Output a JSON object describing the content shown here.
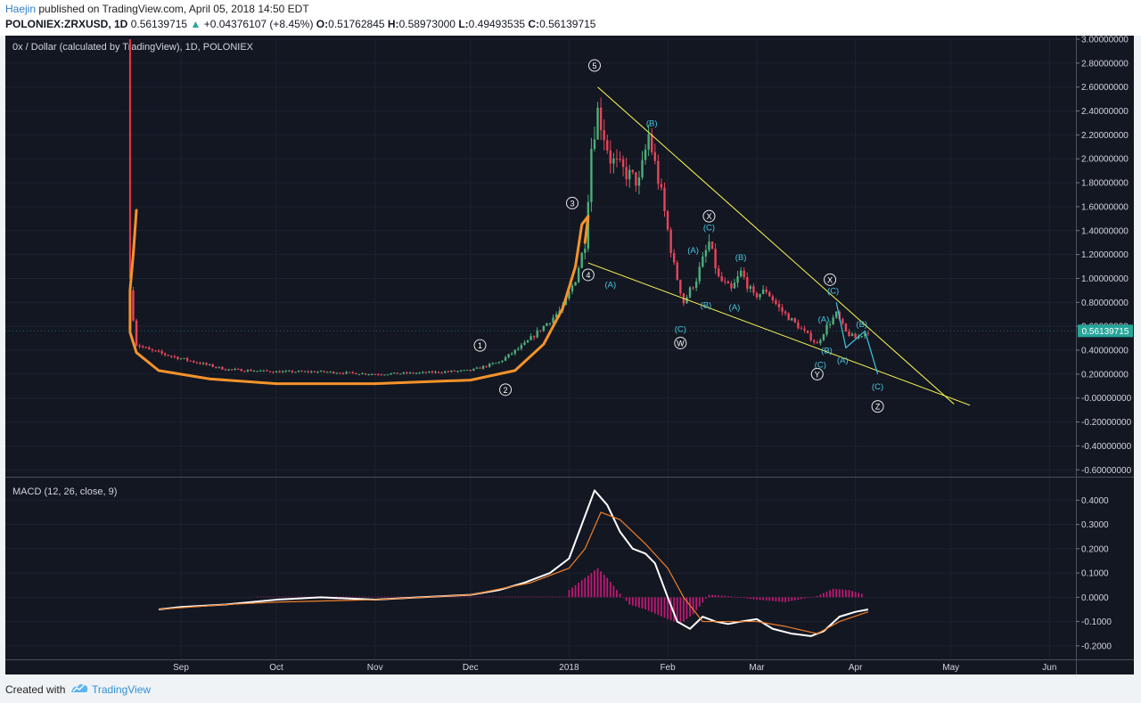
{
  "header": {
    "author": "Haejin",
    "published_text": "published on TradingView.com, April 05, 2018 14:50 EDT",
    "symbol_line": "POLONIEX:ZRXUSD, 1D",
    "last": "0.56139715",
    "change_arrow": "▲",
    "change": "+0.04376107 (+8.45%)",
    "o_label": "O:",
    "o": "0.51762845",
    "h_label": "H:",
    "h": "0.58973000",
    "l_label": "L:",
    "l": "0.49493535",
    "c_label": "C:",
    "c": "0.56139715"
  },
  "chart_data": [
    {
      "type": "candlestick",
      "title": "0x / Dollar (calculated by TradingView), 1D, POLONIEX",
      "y_ticks": [
        "3.00000000",
        "2.80000000",
        "2.60000000",
        "2.40000000",
        "2.20000000",
        "2.00000000",
        "1.80000000",
        "1.60000000",
        "1.40000000",
        "1.20000000",
        "1.00000000",
        "0.80000000",
        "0.60000000",
        "0.40000000",
        "0.20000000",
        "-0.00000000",
        "-0.20000000",
        "-0.40000000",
        "-0.60000000"
      ],
      "ylim": [
        -0.65,
        3.0
      ],
      "x_labels": [
        "Sep",
        "Oct",
        "Nov",
        "Dec",
        "2018",
        "Feb",
        "Mar",
        "Apr",
        "May",
        "Jun"
      ],
      "x_dates": [
        "2017-09-01",
        "2017-10-01",
        "2017-11-01",
        "2017-12-01",
        "2018-01-01",
        "2018-02-01",
        "2018-03-01",
        "2018-04-01",
        "2018-05-01",
        "2018-06-01"
      ],
      "last_price_label": "0.56139715",
      "last_price": 0.5614,
      "close_series": {
        "dates": [
          "2017-08-16",
          "2017-08-18",
          "2017-08-22",
          "2017-09-01",
          "2017-09-15",
          "2017-10-01",
          "2017-10-15",
          "2017-11-01",
          "2017-11-15",
          "2017-12-01",
          "2017-12-10",
          "2017-12-18",
          "2017-12-24",
          "2017-12-30",
          "2018-01-03",
          "2018-01-06",
          "2018-01-08",
          "2018-01-10",
          "2018-01-14",
          "2018-01-18",
          "2018-01-23",
          "2018-01-26",
          "2018-01-30",
          "2018-02-03",
          "2018-02-06",
          "2018-02-10",
          "2018-02-14",
          "2018-02-17",
          "2018-02-21",
          "2018-02-24",
          "2018-02-28",
          "2018-03-04",
          "2018-03-08",
          "2018-03-12",
          "2018-03-16",
          "2018-03-20",
          "2018-03-23",
          "2018-03-26",
          "2018-03-29",
          "2018-04-01",
          "2018-04-05"
        ],
        "values": [
          0.9,
          0.45,
          0.4,
          0.33,
          0.24,
          0.22,
          0.22,
          0.2,
          0.21,
          0.23,
          0.3,
          0.45,
          0.6,
          0.75,
          1.0,
          1.3,
          2.1,
          2.4,
          2.0,
          1.9,
          1.8,
          2.2,
          1.7,
          1.1,
          0.8,
          1.0,
          1.3,
          1.0,
          0.9,
          1.05,
          0.85,
          0.9,
          0.75,
          0.65,
          0.55,
          0.45,
          0.6,
          0.7,
          0.55,
          0.5,
          0.56
        ]
      },
      "annotations": [
        {
          "text": "1",
          "style": "circled",
          "date": "2017-12-04",
          "y": 0.44
        },
        {
          "text": "2",
          "style": "circled",
          "date": "2017-12-12",
          "y": 0.07
        },
        {
          "text": "3",
          "style": "circled",
          "date": "2018-01-02",
          "y": 1.63
        },
        {
          "text": "4",
          "style": "circled",
          "date": "2018-01-07",
          "y": 1.03
        },
        {
          "text": "5",
          "style": "circled",
          "date": "2018-01-09",
          "y": 2.78
        },
        {
          "text": "(A)",
          "style": "wave",
          "date": "2018-01-14",
          "y": 0.95
        },
        {
          "text": "(B)",
          "style": "wave",
          "date": "2018-01-27",
          "y": 2.3
        },
        {
          "text": "(C)",
          "style": "wave",
          "date": "2018-02-05",
          "y": 0.58
        },
        {
          "text": "W",
          "style": "circled",
          "date": "2018-02-05",
          "y": 0.46
        },
        {
          "text": "(A)",
          "style": "wave",
          "date": "2018-02-09",
          "y": 1.24
        },
        {
          "text": "(B)",
          "style": "wave",
          "date": "2018-02-13",
          "y": 0.78
        },
        {
          "text": "X",
          "style": "circled",
          "date": "2018-02-14",
          "y": 1.52
        },
        {
          "text": "(C)",
          "style": "wave",
          "date": "2018-02-14",
          "y": 1.43
        },
        {
          "text": "(B)",
          "style": "wave",
          "date": "2018-02-24",
          "y": 1.18
        },
        {
          "text": "(A)",
          "style": "wave",
          "date": "2018-02-22",
          "y": 0.76
        },
        {
          "text": "(C)",
          "style": "wave",
          "date": "2018-03-21",
          "y": 0.28
        },
        {
          "text": "Y",
          "style": "circled",
          "date": "2018-03-20",
          "y": 0.2
        },
        {
          "text": "(A)",
          "style": "wave",
          "date": "2018-03-22",
          "y": 0.66
        },
        {
          "text": "(B)",
          "style": "wave",
          "date": "2018-03-23",
          "y": 0.4
        },
        {
          "text": "X",
          "style": "circled",
          "date": "2018-03-24",
          "y": 0.99
        },
        {
          "text": "(C)",
          "style": "wave",
          "date": "2018-03-25",
          "y": 0.9
        },
        {
          "text": "(A)",
          "style": "wave",
          "date": "2018-03-28",
          "y": 0.32
        },
        {
          "text": "(B)",
          "style": "wave",
          "date": "2018-04-03",
          "y": 0.62
        },
        {
          "text": "(C)",
          "style": "wave",
          "date": "2018-04-08",
          "y": 0.1
        },
        {
          "text": "Z",
          "style": "circled",
          "date": "2018-04-08",
          "y": -0.07
        }
      ],
      "trendlines": [
        {
          "name": "upper",
          "color": "#ffff54",
          "from": {
            "date": "2018-01-10",
            "y": 2.6
          },
          "to": {
            "date": "2018-05-02",
            "y": -0.05
          }
        },
        {
          "name": "lower",
          "color": "#ffff54",
          "from": {
            "date": "2018-01-07",
            "y": 1.13
          },
          "to": {
            "date": "2018-05-07",
            "y": -0.06
          }
        }
      ],
      "projection": {
        "color": "#3ec8e0",
        "points": [
          {
            "date": "2018-03-26",
            "y": 0.8
          },
          {
            "date": "2018-03-29",
            "y": 0.42
          },
          {
            "date": "2018-04-04",
            "y": 0.56
          },
          {
            "date": "2018-04-08",
            "y": 0.2
          }
        ]
      },
      "hand_drawn_curve": {
        "color": "#f5932a",
        "points": [
          {
            "date": "2017-08-18",
            "y": 1.57
          },
          {
            "date": "2017-08-17",
            "y": 1.2
          },
          {
            "date": "2017-08-16",
            "y": 0.9
          },
          {
            "date": "2017-08-16",
            "y": 0.55
          },
          {
            "date": "2017-08-18",
            "y": 0.38
          },
          {
            "date": "2017-08-25",
            "y": 0.23
          },
          {
            "date": "2017-09-10",
            "y": 0.16
          },
          {
            "date": "2017-10-01",
            "y": 0.12
          },
          {
            "date": "2017-11-01",
            "y": 0.12
          },
          {
            "date": "2017-12-01",
            "y": 0.15
          },
          {
            "date": "2017-12-15",
            "y": 0.23
          },
          {
            "date": "2017-12-24",
            "y": 0.45
          },
          {
            "date": "2017-12-30",
            "y": 0.75
          },
          {
            "date": "2018-01-03",
            "y": 1.1
          },
          {
            "date": "2018-01-05",
            "y": 1.45
          },
          {
            "date": "2018-01-07",
            "y": 1.52
          },
          {
            "date": "2018-01-06",
            "y": 1.3
          }
        ]
      },
      "red_spike": {
        "color": "#f23645",
        "date": "2017-08-16",
        "from": 3.0,
        "to": 1.0
      }
    },
    {
      "type": "line",
      "title": "MACD (12, 26, close, 9)",
      "y_ticks": [
        "0.4000",
        "0.3000",
        "0.2000",
        "0.1000",
        "0.0000",
        "-0.1000",
        "-0.2000"
      ],
      "ylim": [
        -0.23,
        0.46
      ],
      "series": [
        {
          "color": "#ffffff",
          "dates": [
            "2017-08-25",
            "2017-09-01",
            "2017-09-15",
            "2017-10-01",
            "2017-10-15",
            "2017-11-01",
            "2017-11-15",
            "2017-12-01",
            "2017-12-10",
            "2017-12-18",
            "2017-12-26",
            "2018-01-01",
            "2018-01-05",
            "2018-01-09",
            "2018-01-13",
            "2018-01-17",
            "2018-01-21",
            "2018-01-25",
            "2018-01-28",
            "2018-02-01",
            "2018-02-04",
            "2018-02-08",
            "2018-02-12",
            "2018-02-16",
            "2018-02-20",
            "2018-02-24",
            "2018-03-01",
            "2018-03-06",
            "2018-03-12",
            "2018-03-18",
            "2018-03-22",
            "2018-03-27",
            "2018-04-01",
            "2018-04-05"
          ],
          "values": [
            -0.05,
            -0.04,
            -0.03,
            -0.01,
            0.0,
            -0.01,
            0.0,
            0.01,
            0.03,
            0.06,
            0.1,
            0.16,
            0.3,
            0.44,
            0.38,
            0.27,
            0.2,
            0.18,
            0.14,
            0.0,
            -0.1,
            -0.13,
            -0.08,
            -0.1,
            -0.11,
            -0.1,
            -0.09,
            -0.13,
            -0.15,
            -0.16,
            -0.14,
            -0.08,
            -0.06,
            -0.05
          ]
        },
        {
          "color": "#ef7f2a",
          "dates": [
            "2017-08-25",
            "2017-09-15",
            "2017-10-01",
            "2017-11-01",
            "2017-12-01",
            "2017-12-20",
            "2018-01-01",
            "2018-01-06",
            "2018-01-11",
            "2018-01-17",
            "2018-01-25",
            "2018-02-01",
            "2018-02-06",
            "2018-02-12",
            "2018-02-20",
            "2018-03-01",
            "2018-03-10",
            "2018-03-20",
            "2018-03-27",
            "2018-04-05"
          ],
          "values": [
            -0.05,
            -0.03,
            -0.02,
            -0.01,
            0.01,
            0.06,
            0.12,
            0.2,
            0.35,
            0.32,
            0.22,
            0.12,
            0.0,
            -0.1,
            -0.1,
            -0.1,
            -0.12,
            -0.15,
            -0.1,
            -0.06
          ]
        }
      ],
      "histogram": {
        "color": "#c01874",
        "dates": [
          "2018-01-01",
          "2018-01-04",
          "2018-01-07",
          "2018-01-10",
          "2018-01-13",
          "2018-01-16",
          "2018-01-20",
          "2018-01-25",
          "2018-02-01",
          "2018-02-05",
          "2018-02-09",
          "2018-02-14",
          "2018-02-20",
          "2018-03-01",
          "2018-03-10",
          "2018-03-20",
          "2018-03-25",
          "2018-03-30",
          "2018-04-04"
        ],
        "values": [
          0.03,
          0.06,
          0.09,
          0.12,
          0.08,
          0.03,
          -0.03,
          -0.05,
          -0.09,
          -0.11,
          -0.07,
          0.01,
          0.005,
          -0.01,
          -0.02,
          0.005,
          0.035,
          0.03,
          0.01
        ]
      }
    }
  ],
  "footer": {
    "created_with": "Created with",
    "brand": "TradingView"
  }
}
